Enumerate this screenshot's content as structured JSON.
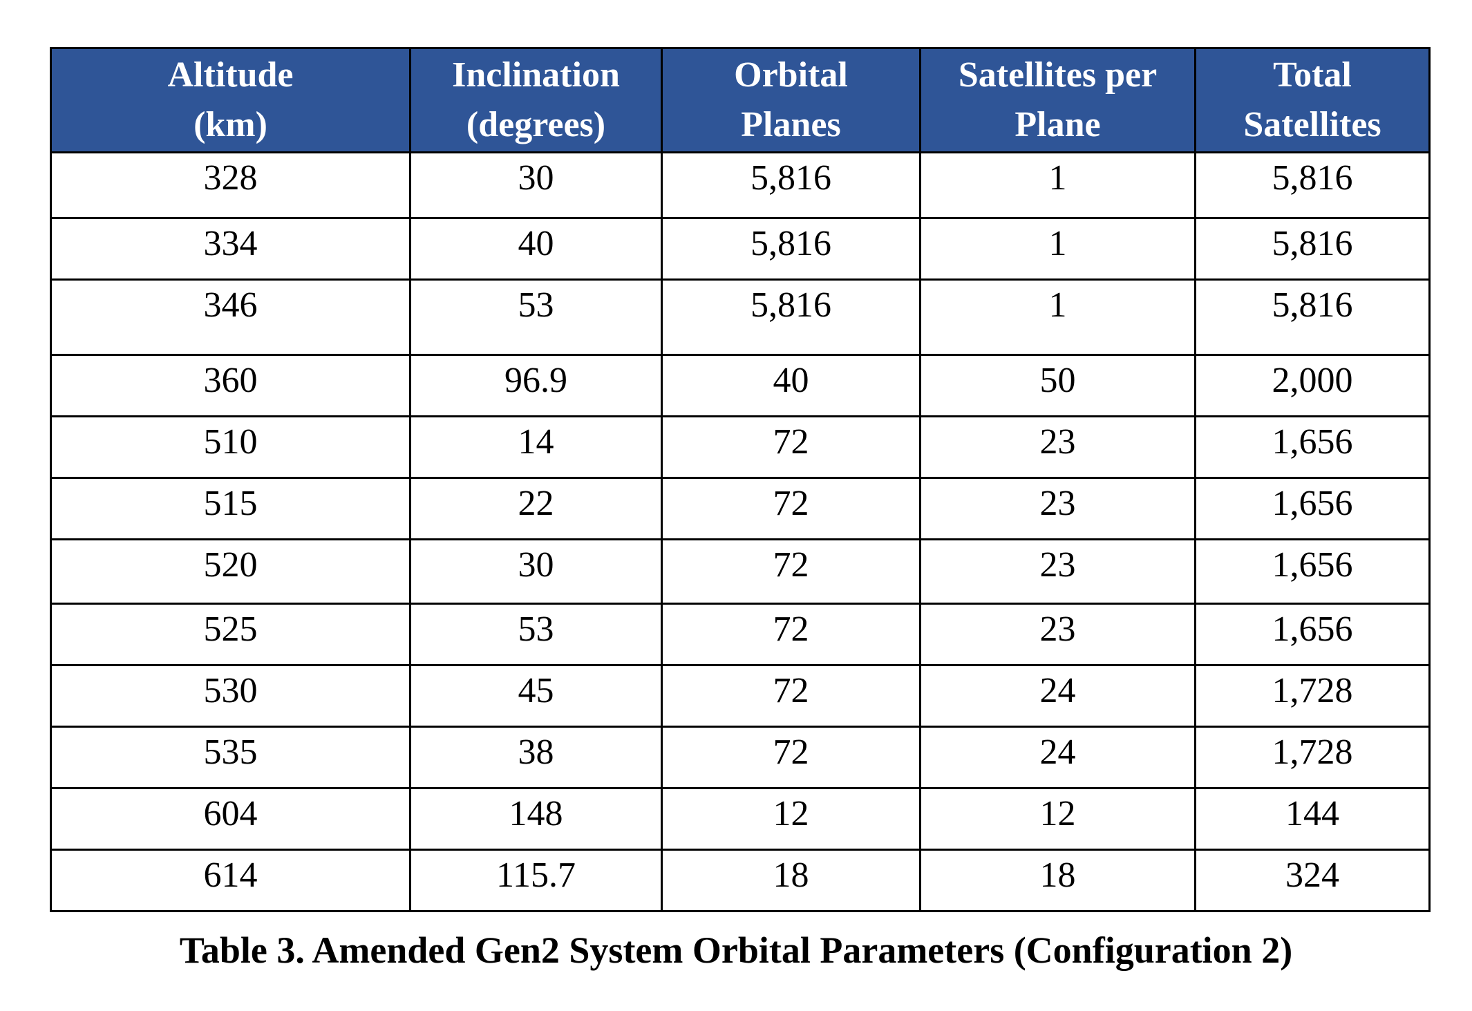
{
  "table": {
    "headers": [
      [
        "Altitude",
        "(km)"
      ],
      [
        "Inclination",
        "(degrees)"
      ],
      [
        "Orbital",
        "Planes"
      ],
      [
        "Satellites per",
        "Plane"
      ],
      [
        "Total",
        "Satellites"
      ]
    ],
    "rows": [
      [
        "328",
        "30",
        "5,816",
        "1",
        "5,816"
      ],
      [
        "334",
        "40",
        "5,816",
        "1",
        "5,816"
      ],
      [
        "346",
        "53",
        "5,816",
        "1",
        "5,816"
      ],
      [
        "360",
        "96.9",
        "40",
        "50",
        "2,000"
      ],
      [
        "510",
        "14",
        "72",
        "23",
        "1,656"
      ],
      [
        "515",
        "22",
        "72",
        "23",
        "1,656"
      ],
      [
        "520",
        "30",
        "72",
        "23",
        "1,656"
      ],
      [
        "525",
        "53",
        "72",
        "23",
        "1,656"
      ],
      [
        "530",
        "45",
        "72",
        "24",
        "1,728"
      ],
      [
        "535",
        "38",
        "72",
        "24",
        "1,728"
      ],
      [
        "604",
        "148",
        "12",
        "12",
        "144"
      ],
      [
        "614",
        "115.7",
        "18",
        "18",
        "324"
      ]
    ]
  },
  "caption": "Table 3.  Amended Gen2 System Orbital Parameters (Configuration 2)",
  "colors": {
    "header_bg": "#2f5597",
    "header_text": "#ffffff"
  }
}
